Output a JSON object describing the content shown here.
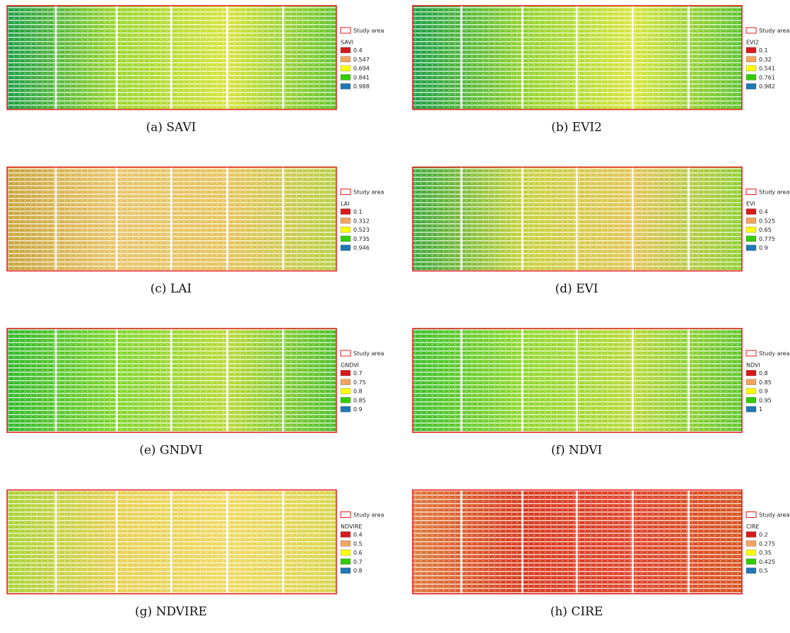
{
  "panels": [
    {
      "caption": "(a) SAVI",
      "legend": {
        "boundary": "Study area",
        "title": "SAVI",
        "items": [
          "0.4",
          "0.547",
          "0.694",
          "0.841",
          "0.988"
        ]
      }
    },
    {
      "caption": "(b) EVI2",
      "legend": {
        "boundary": "Study area",
        "title": "EVI2",
        "items": [
          "0.1",
          "0.32",
          "0.541",
          "0.761",
          "0.982"
        ]
      }
    },
    {
      "caption": "(c) LAI",
      "legend": {
        "boundary": "Study area",
        "title": "LAI",
        "items": [
          "0.1",
          "0.312",
          "0.523",
          "0.735",
          "0.946"
        ]
      }
    },
    {
      "caption": "(d) EVI",
      "legend": {
        "boundary": "Study area",
        "title": "EVI",
        "items": [
          "0.4",
          "0.525",
          "0.65",
          "0.775",
          "0.9"
        ]
      }
    },
    {
      "caption": "(e) GNDVI",
      "legend": {
        "boundary": "Study area",
        "title": "GNDVI",
        "items": [
          "0.7",
          "0.75",
          "0.8",
          "0.85",
          "0.9"
        ]
      }
    },
    {
      "caption": "(f) NDVI",
      "legend": {
        "boundary": "Study area",
        "title": "NDVI",
        "items": [
          "0.8",
          "0.85",
          "0.9",
          "0.95",
          "1"
        ]
      }
    },
    {
      "caption": "(g) NDVIRE",
      "legend": {
        "boundary": "Study area",
        "title": "NDVIRE",
        "items": [
          "0.4",
          "0.5",
          "0.6",
          "0.7",
          "0.8"
        ]
      }
    },
    {
      "caption": "(h) CIRE",
      "legend": {
        "boundary": "Study area",
        "title": "CIRE",
        "items": [
          "0.2",
          "0.275",
          "0.35",
          "0.425",
          "0.5"
        ]
      }
    }
  ],
  "legend_colors": [
    "#d7191c",
    "#f4a460",
    "#ffff00",
    "#33cc00",
    "#1f78b4"
  ]
}
